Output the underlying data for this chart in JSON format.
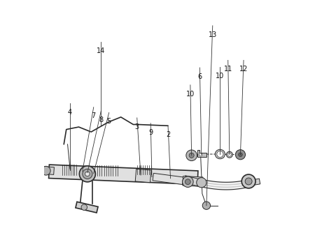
{
  "bg_color": "#ffffff",
  "line_color": "#2a2a2a",
  "fig_width": 4.8,
  "fig_height": 3.57,
  "dpi": 100
}
